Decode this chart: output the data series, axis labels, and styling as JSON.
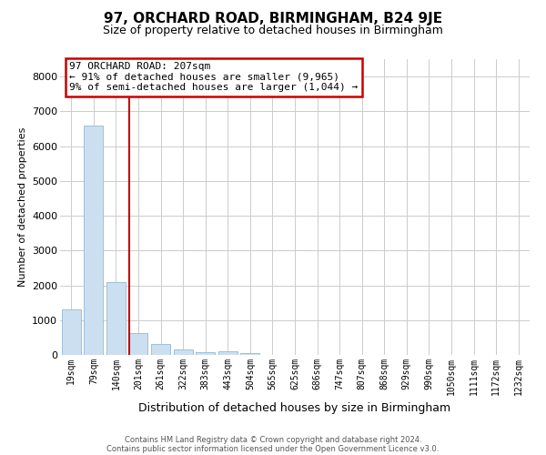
{
  "title": "97, ORCHARD ROAD, BIRMINGHAM, B24 9JE",
  "subtitle": "Size of property relative to detached houses in Birmingham",
  "xlabel": "Distribution of detached houses by size in Birmingham",
  "ylabel": "Number of detached properties",
  "bar_labels": [
    "19sqm",
    "79sqm",
    "140sqm",
    "201sqm",
    "261sqm",
    "322sqm",
    "383sqm",
    "443sqm",
    "504sqm",
    "565sqm",
    "625sqm",
    "686sqm",
    "747sqm",
    "807sqm",
    "868sqm",
    "929sqm",
    "990sqm",
    "1050sqm",
    "1111sqm",
    "1172sqm",
    "1232sqm"
  ],
  "bar_values": [
    1300,
    6580,
    2090,
    620,
    305,
    155,
    80,
    105,
    65,
    0,
    0,
    0,
    0,
    0,
    0,
    0,
    0,
    0,
    0,
    0,
    0
  ],
  "bar_color": "#ccdff0",
  "bar_edge_color": "#9dbfda",
  "property_line_index": 3,
  "annotation_title": "97 ORCHARD ROAD: 207sqm",
  "annotation_line1": "← 91% of detached houses are smaller (9,965)",
  "annotation_line2": "9% of semi-detached houses are larger (1,044) →",
  "annotation_box_color": "#ffffff",
  "annotation_box_edge": "#cc0000",
  "vline_color": "#cc0000",
  "ylim_max": 8500,
  "ytick_max": 8000,
  "ytick_step": 1000,
  "grid_color": "#cccccc",
  "background_color": "#ffffff",
  "footer1": "Contains HM Land Registry data © Crown copyright and database right 2024.",
  "footer2": "Contains public sector information licensed under the Open Government Licence v3.0.",
  "title_fontsize": 11,
  "subtitle_fontsize": 9,
  "ylabel_fontsize": 8,
  "xlabel_fontsize": 9,
  "ann_fontsize": 8,
  "tick_fontsize": 7,
  "footer_fontsize": 6
}
